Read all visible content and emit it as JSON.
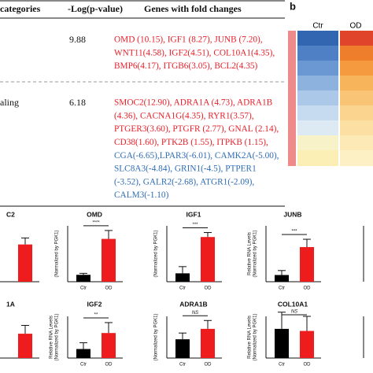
{
  "table": {
    "headers": [
      "categories",
      "-Log(p-value)",
      "Genes with fold changes"
    ],
    "rows": [
      {
        "log_p": "9.88",
        "genes_up": [
          "OMD (10.15), IGF1 (8.27), JUNB (7.20),",
          "WNT11(4.58), IGF2(4.51), COL10A1(4.35),",
          "BMP6(4.17), ITGB6(3.05), BCL2(4.35)"
        ]
      },
      {
        "category": "aling",
        "log_p": "6.18",
        "genes_up": [
          "SMOC2(12.90), ADRA1A (4.73), ADRA1B",
          "(4.36), CACNA1G(4.35), RYR1(3.57),",
          "PTGER3(3.60), PTGFR (2.77), GNAL (2.14),",
          "CD38(1.60), PTK2B (1.55), ITPKB (1.15),"
        ],
        "genes_down": [
          "CGA(-6.65),LPAR3(-6.01), CAMK2A(-5.00),",
          "SLC8A3(-4.84), GRIN1(-4.5), PTPER1",
          "(-3.52), GALR2(-2.68), ATGR1(-2.09),",
          "CALM3(-1.10)"
        ]
      }
    ]
  },
  "heatmap": {
    "panel": "b",
    "columns": [
      "Ctr",
      "OD"
    ]
  },
  "bar_panels": [
    {
      "title": "C2",
      "values": [
        null,
        2.0
      ],
      "errors": [
        null,
        0.35
      ],
      "ylim": [
        0,
        3
      ]
    },
    {
      "title": "OMD",
      "ylabel": [
        "(Normalized by PGK1)"
      ],
      "categories": [
        "Ctr",
        "OD"
      ],
      "values": [
        0.37,
        2.3
      ],
      "errors": [
        0.08,
        0.45
      ],
      "ylim": [
        0,
        3
      ],
      "significance": "****"
    },
    {
      "title": "IGF1",
      "ylabel": [
        "(Normalized by PGK1)"
      ],
      "categories": [
        "Ctr",
        "OD"
      ],
      "values": [
        0.15,
        0.8
      ],
      "errors": [
        0.12,
        0.08
      ],
      "ylim": [
        0,
        1
      ],
      "significance": "***"
    },
    {
      "title": "JUNB",
      "ylabel": [
        "Relative RNA Levels",
        "(Normalized by PGK1)"
      ],
      "categories": [
        "Ctr",
        "OD"
      ],
      "values": [
        0.3,
        1.55
      ],
      "errors": [
        0.2,
        0.35
      ],
      "ylim": [
        0,
        2.5
      ],
      "significance": "***"
    },
    {
      "title": "1A",
      "values": [
        null,
        0.35
      ],
      "errors": [
        null,
        0.12
      ],
      "ylim": [
        0,
        0.6
      ]
    },
    {
      "title": "IGF2",
      "ylabel": [
        "Relative RNA Levels",
        "(Normalized by PGK1)"
      ],
      "categories": [
        "Ctr",
        "OD"
      ],
      "values": [
        0.13,
        0.36
      ],
      "errors": [
        0.09,
        0.15
      ],
      "ylim": [
        0,
        0.6
      ],
      "significance": "**"
    },
    {
      "title": "ADRA1B",
      "ylabel": [
        "(Normalized by PGK1)"
      ],
      "categories": [
        "Ctr",
        "OD"
      ],
      "values": [
        0.09,
        0.14
      ],
      "errors": [
        0.03,
        0.04
      ],
      "ylim": [
        0,
        0.2
      ],
      "significance": "NS"
    },
    {
      "title": "COL10A1",
      "ylabel": [
        "Relative RNA Levels",
        "(Normalized by PGK1)"
      ],
      "categories": [
        "Ctr",
        "OD"
      ],
      "values": [
        0.14,
        0.13
      ],
      "errors": [
        0.08,
        0.07
      ],
      "ylim": [
        0,
        0.2
      ],
      "significance": "NS"
    }
  ]
}
